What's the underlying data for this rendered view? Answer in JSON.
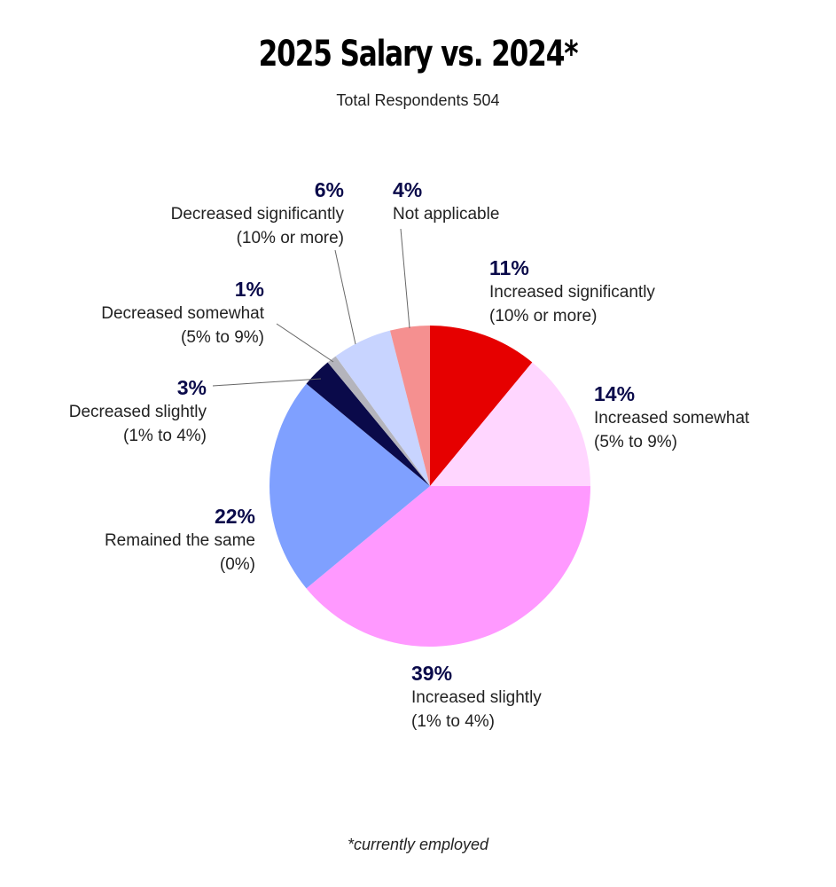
{
  "chart_data": {
    "type": "pie",
    "title": "2025 Salary vs. 2024*",
    "subtitle": "Total Respondents 504",
    "footnote": "*currently employed",
    "categories": [
      "Increased significantly (10% or more)",
      "Increased somewhat (5% to 9%)",
      "Increased slightly (1% to 4%)",
      "Remained the same (0%)",
      "Decreased slightly (1% to 4%)",
      "Decreased somewhat (5% to 9%)",
      "Decreased significantly (10% or more)",
      "Not applicable"
    ],
    "values": [
      11,
      14,
      39,
      22,
      3,
      1,
      6,
      4
    ],
    "value_labels": [
      "11%",
      "14%",
      "39%",
      "22%",
      "3%",
      "1%",
      "6%",
      "4%"
    ],
    "colors": [
      "#e60000",
      "#ffd6ff",
      "#ff99ff",
      "#7fa0ff",
      "#0a0a4a",
      "#b4b4bc",
      "#c8d4ff",
      "#f59090"
    ]
  }
}
